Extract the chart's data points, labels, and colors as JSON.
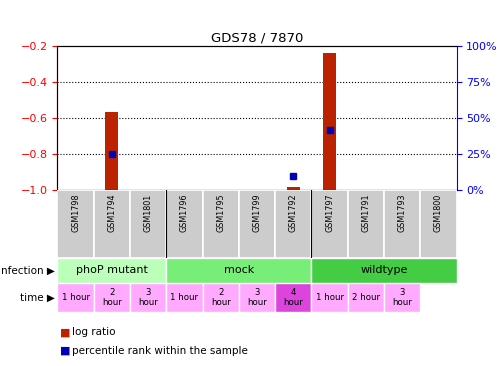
{
  "title": "GDS78 / 7870",
  "samples": [
    "GSM1798",
    "GSM1794",
    "GSM1801",
    "GSM1796",
    "GSM1795",
    "GSM1799",
    "GSM1792",
    "GSM1797",
    "GSM1791",
    "GSM1793",
    "GSM1800"
  ],
  "log_ratio": [
    null,
    -0.565,
    null,
    null,
    null,
    null,
    -0.98,
    -0.24,
    null,
    null,
    null
  ],
  "percentile_rank": [
    null,
    25,
    null,
    null,
    null,
    null,
    10,
    42,
    null,
    null,
    null
  ],
  "infection_groups": [
    {
      "label": "phoP mutant",
      "start": 0,
      "end": 3,
      "color": "#bbffbb"
    },
    {
      "label": "mock",
      "start": 3,
      "end": 7,
      "color": "#77ee77"
    },
    {
      "label": "wildtype",
      "start": 7,
      "end": 11,
      "color": "#44cc44"
    }
  ],
  "time_labels": [
    "1 hour",
    "2\nhour",
    "3\nhour",
    "1 hour",
    "2\nhour",
    "3\nhour",
    "4\nhour",
    "1 hour",
    "2 hour",
    "3\nhour",
    null
  ],
  "time_colors": [
    "#ffaaff",
    "#ffaaff",
    "#ffaaff",
    "#ffaaff",
    "#ffaaff",
    "#ffaaff",
    "#dd44dd",
    "#ffaaff",
    "#ffaaff",
    "#ffaaff",
    null
  ],
  "ylim_left": [
    -1.0,
    -0.2
  ],
  "ylim_right": [
    0,
    100
  ],
  "yticks_left": [
    -1.0,
    -0.8,
    -0.6,
    -0.4,
    -0.2
  ],
  "yticks_right": [
    0,
    25,
    50,
    75,
    100
  ],
  "bar_color": "#bb2200",
  "dot_color": "#0000bb",
  "background_color": "#ffffff"
}
